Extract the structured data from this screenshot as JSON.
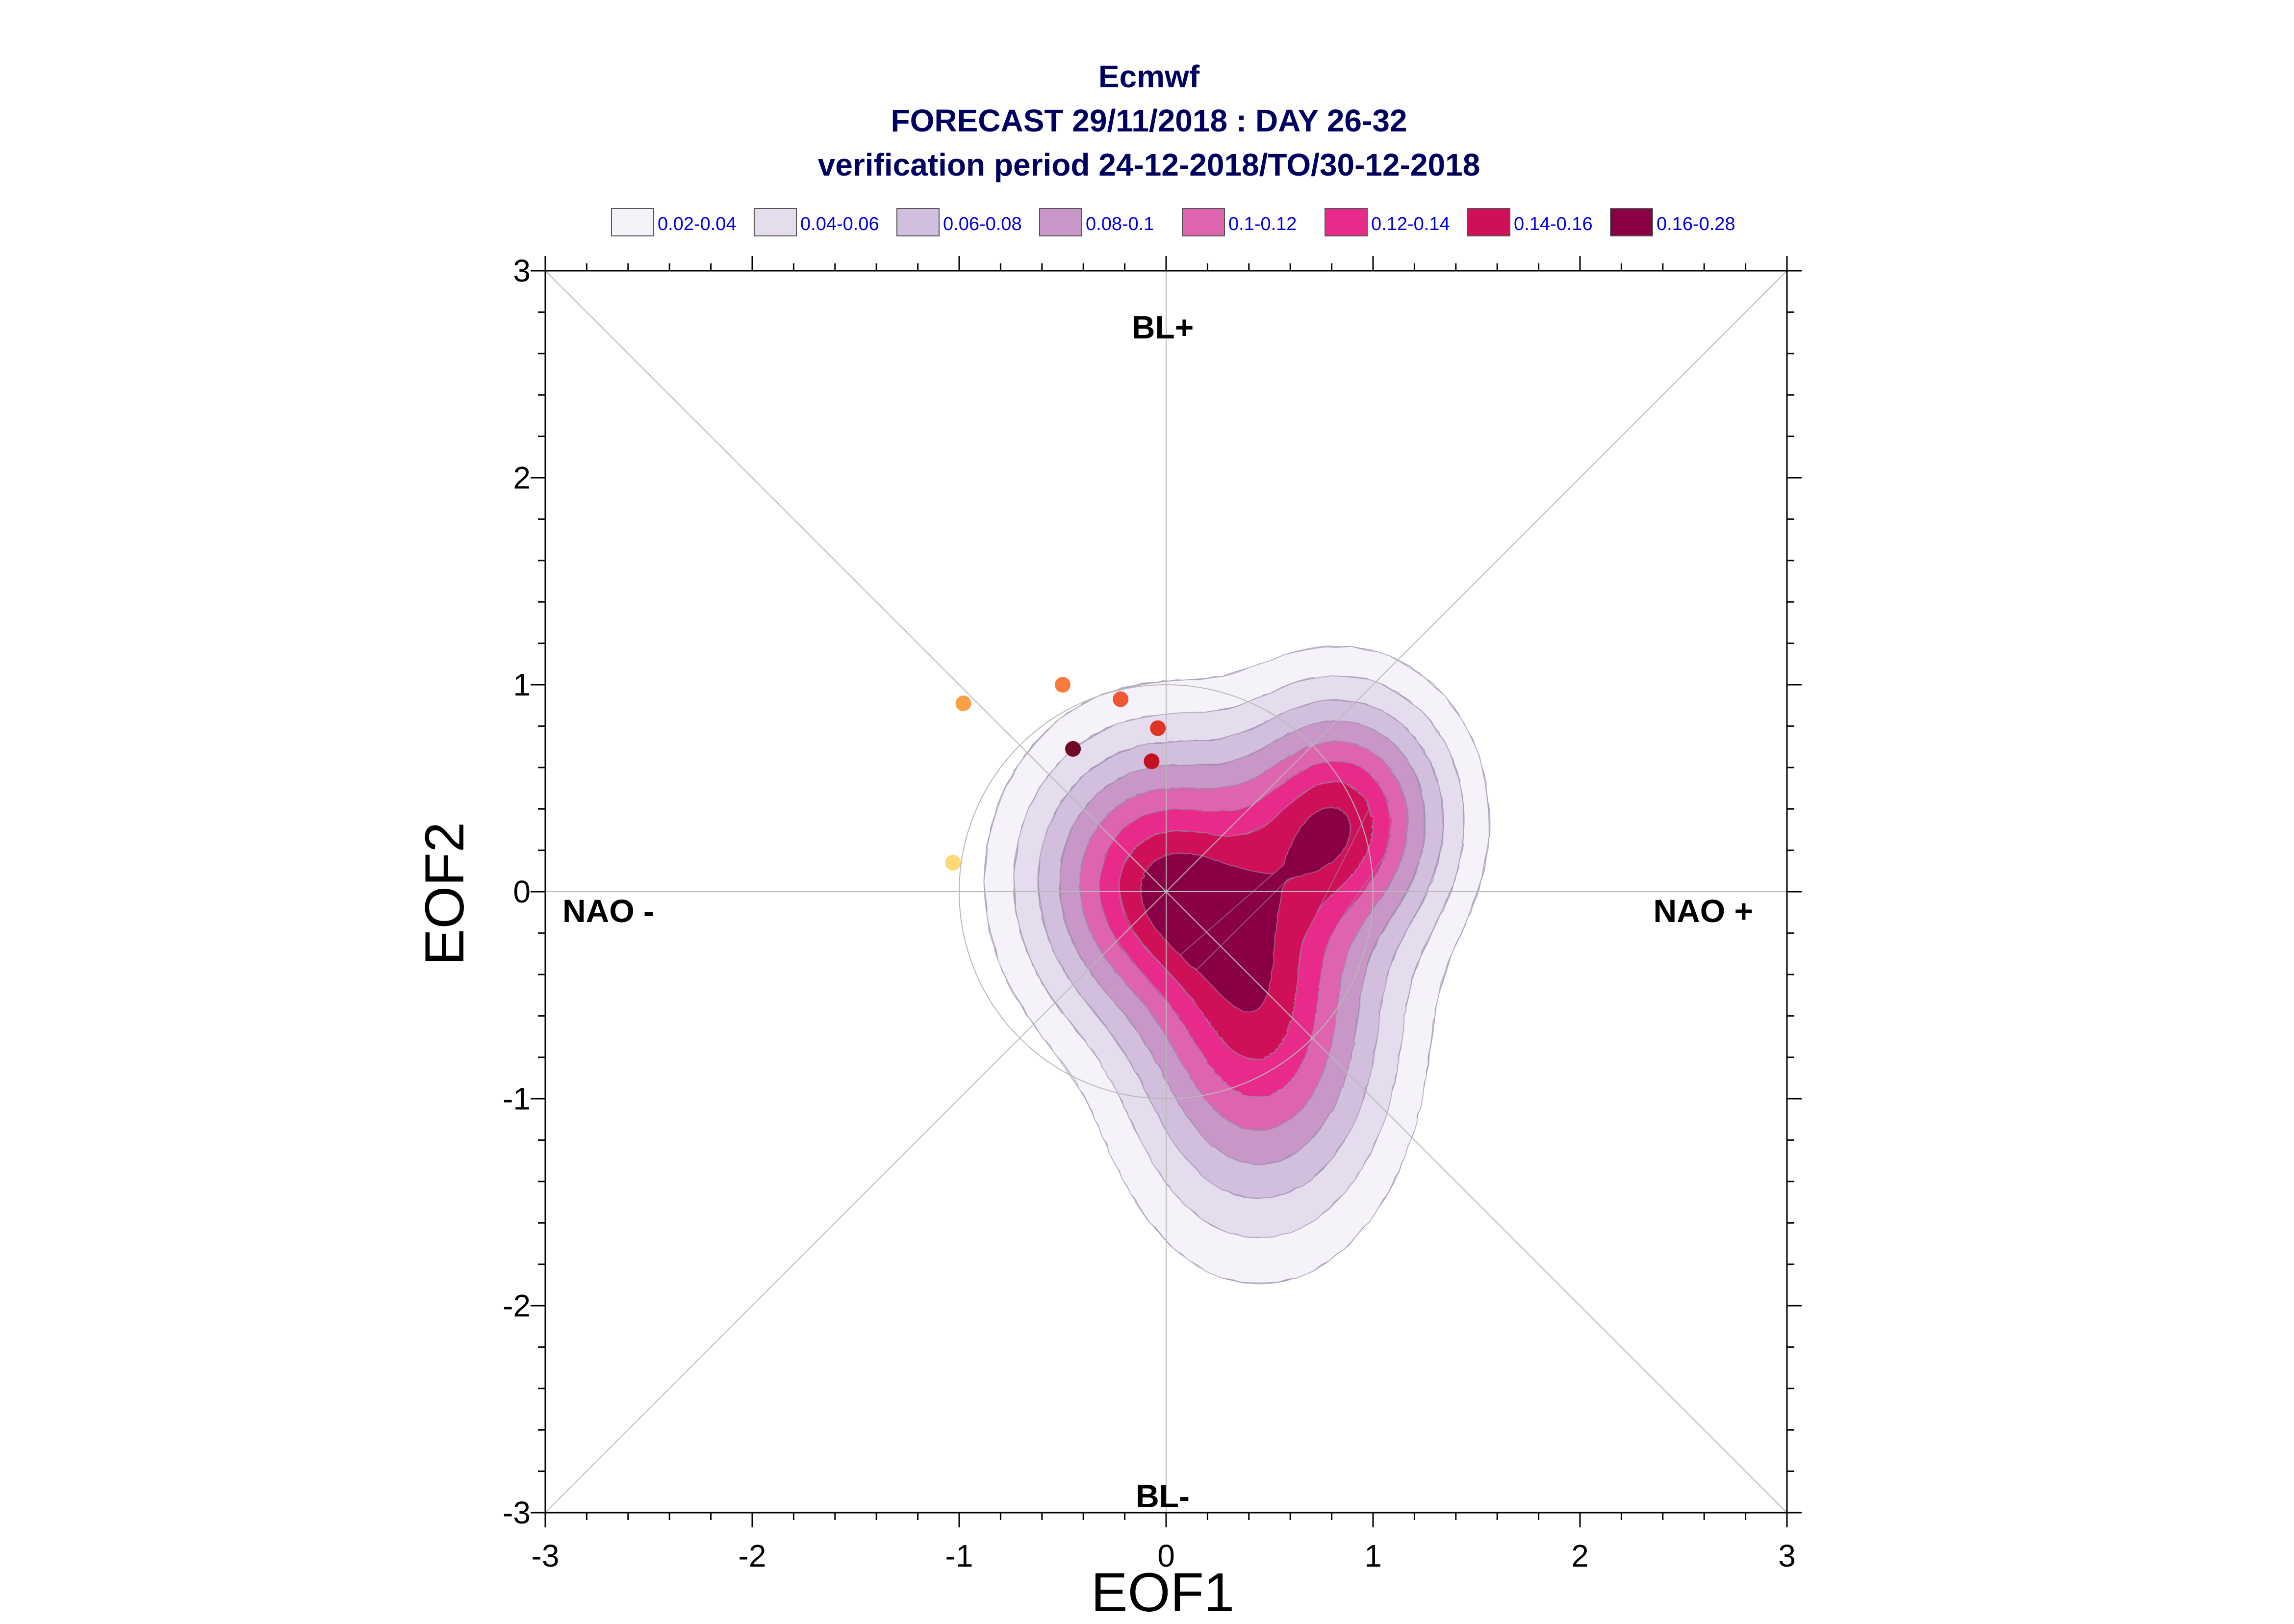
{
  "chart_data": {
    "type": "contour-scatter",
    "title": [
      "Ecmwf",
      "FORECAST 29/11/2018 : DAY 26-32",
      "verification period 24-12-2018/TO/30-12-2018"
    ],
    "xlabel": "EOF1",
    "ylabel": "EOF2",
    "xlim": [
      -3,
      3
    ],
    "ylim": [
      -3,
      3
    ],
    "xticks": [
      "-3",
      "-2",
      "-1",
      "0",
      "1",
      "2",
      "3"
    ],
    "yticks": [
      "-3",
      "-2",
      "-1",
      "0",
      "1",
      "2",
      "3"
    ],
    "legend_position": "top",
    "regime_labels": {
      "top": "BL+",
      "bottom": "BL-",
      "left": "NAO -",
      "right": "NAO +"
    },
    "levels": [
      {
        "label": "0.02-0.04",
        "color": "#f5f2f9"
      },
      {
        "label": "0.04-0.06",
        "color": "#e5dcee"
      },
      {
        "label": "0.06-0.08",
        "color": "#d2bfde"
      },
      {
        "label": "0.08-0.1",
        "color": "#c996c8"
      },
      {
        "label": "0.1-0.12",
        "color": "#df64b0"
      },
      {
        "label": "0.12-0.14",
        "color": "#e82b8a"
      },
      {
        "label": "0.14-0.16",
        "color": "#cf1059"
      },
      {
        "label": "0.16-0.28",
        "color": "#8a0045"
      }
    ],
    "density_modes": [
      {
        "x": -0.05,
        "y": 0.05,
        "sx": 0.35,
        "sy": 0.4
      },
      {
        "x": 0.85,
        "y": 0.35,
        "sx": 0.3,
        "sy": 0.35
      },
      {
        "x": 0.45,
        "y": -0.6,
        "sx": 0.35,
        "sy": 0.55
      }
    ],
    "points": [
      {
        "x": -0.98,
        "y": 0.91,
        "color": "#fba049"
      },
      {
        "x": -0.5,
        "y": 1.0,
        "color": "#f87a3c"
      },
      {
        "x": -0.22,
        "y": 0.93,
        "color": "#ef5634"
      },
      {
        "x": -0.04,
        "y": 0.79,
        "color": "#e03525"
      },
      {
        "x": -0.07,
        "y": 0.63,
        "color": "#c21022"
      },
      {
        "x": -0.45,
        "y": 0.69,
        "color": "#6e0a25"
      },
      {
        "x": -1.03,
        "y": 0.14,
        "color": "#fed976"
      }
    ]
  }
}
